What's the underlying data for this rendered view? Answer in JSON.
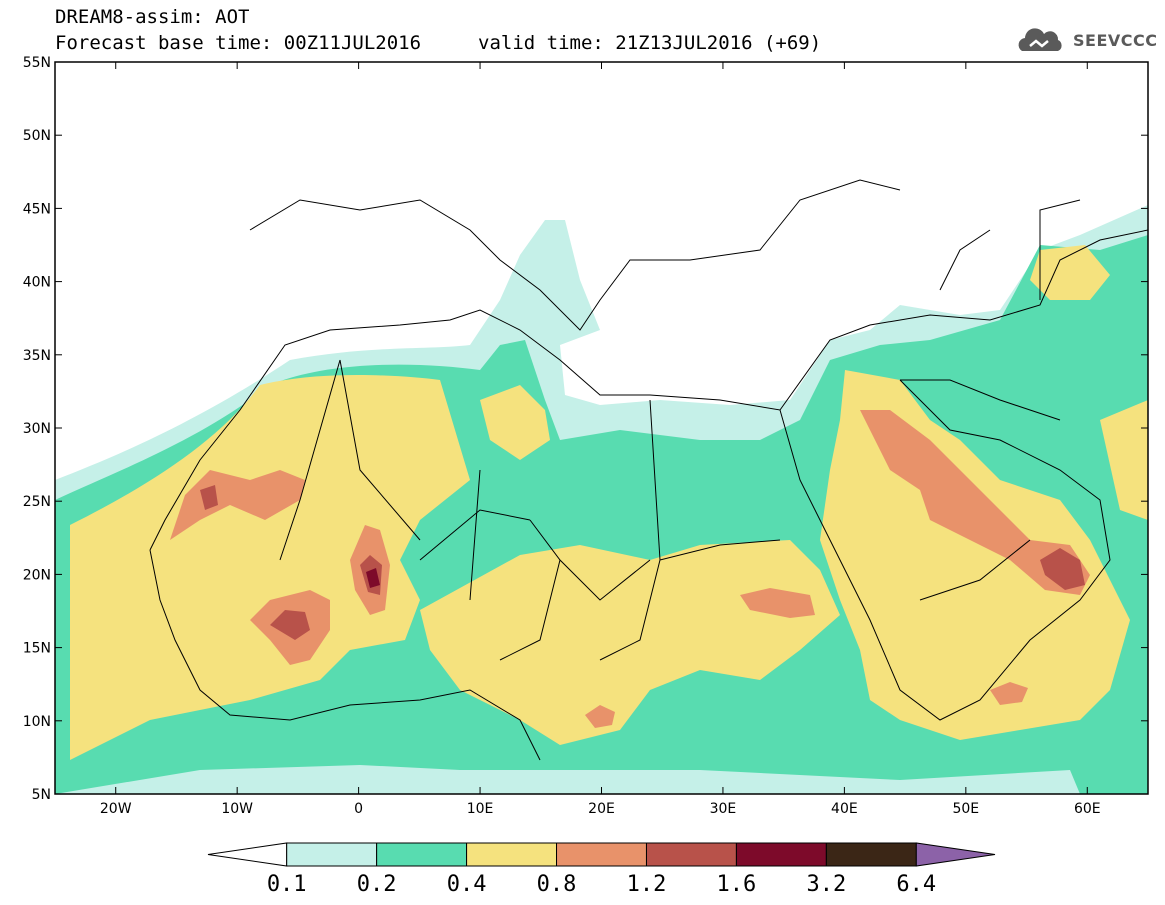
{
  "header": {
    "title": "DREAM8-assim: AOT",
    "base_time": "Forecast base time: 00Z11JUL2016",
    "valid_time": "valid time: 21Z13JUL2016 (+69)",
    "logo_text": "SEEVCCC"
  },
  "map": {
    "lon_range": [
      -25,
      65
    ],
    "lat_range": [
      5,
      55
    ],
    "lat_ticks": [
      "5N",
      "10N",
      "15N",
      "20N",
      "25N",
      "30N",
      "35N",
      "40N",
      "45N",
      "50N",
      "55N"
    ],
    "lon_ticks": [
      "20W",
      "10W",
      "0",
      "10E",
      "20E",
      "30E",
      "40E",
      "50E",
      "60E"
    ]
  },
  "legend": {
    "labels": [
      "0.1",
      "0.2",
      "0.4",
      "0.8",
      "1.2",
      "1.6",
      "3.2",
      "6.4"
    ],
    "colors": [
      "#ffffff",
      "#c5f0e8",
      "#58dcb0",
      "#f5e27e",
      "#e8926a",
      "#b8524a",
      "#7d0a2a",
      "#3b2616",
      "#8c62a8"
    ]
  }
}
